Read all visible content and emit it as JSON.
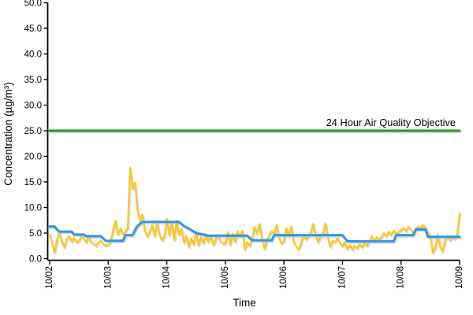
{
  "chart_data": {
    "type": "line",
    "title": "",
    "xlabel": "Time",
    "ylabel": "Concentration (µg/m³)",
    "ylim": [
      0,
      50
    ],
    "x_range_hours": [
      0,
      168
    ],
    "hours_per_day": 24,
    "grid": "off",
    "legend": "none",
    "y_tick_labels": [
      "0.0",
      "5.0",
      "10.0",
      "15.0",
      "20.0",
      "25.0",
      "30.0",
      "35.0",
      "40.0",
      "45.0",
      "50.0"
    ],
    "x_tick_labels": [
      "10/02",
      "10/03",
      "10/04",
      "10/05",
      "10/06",
      "10/07",
      "10/08",
      "10/09"
    ],
    "objective": {
      "label": "24 Hour Air Quality Objective",
      "value": 25,
      "color": "#1E9E1E"
    },
    "colors": {
      "axis": "#000000",
      "tick_text": "#000000",
      "shadow": "#bbbbbb",
      "hourly": "#FFC61A",
      "average": "#2D96EA"
    },
    "series": [
      {
        "name": "hourly-concentration",
        "color": "#FFC61A",
        "stroke_width": 2.2,
        "x_step_hours": 1,
        "values": [
          4.6,
          3.1,
          1.2,
          3.8,
          5.3,
          3.3,
          2.2,
          3.9,
          4.4,
          3.3,
          4.1,
          3.2,
          3.5,
          4.6,
          3.9,
          3.2,
          4.5,
          3.1,
          2.9,
          2.5,
          3.2,
          3.6,
          2.8,
          2.6,
          2.7,
          3.4,
          5.6,
          7.4,
          4.7,
          5.9,
          4.8,
          5.3,
          6.0,
          17.8,
          13.6,
          14.9,
          9.4,
          7.4,
          8.6,
          5.5,
          4.3,
          5.3,
          6.6,
          4.4,
          7.1,
          4.7,
          3.6,
          4.3,
          7.8,
          4.6,
          7.2,
          3.6,
          7.4,
          4.7,
          5.9,
          3.1,
          4.5,
          2.3,
          4.0,
          2.8,
          5.2,
          2.6,
          4.3,
          3.0,
          4.8,
          3.2,
          4.5,
          2.7,
          3.8,
          4.7,
          3.4,
          2.9,
          3.1,
          5.2,
          2.7,
          4.9,
          3.3,
          5.4,
          4.4,
          5.5,
          1.7,
          3.3,
          2.5,
          4.1,
          6.2,
          4.9,
          6.8,
          4.1,
          1.9,
          3.6,
          4.6,
          5.4,
          4.8,
          6.6,
          4.0,
          3.0,
          3.4,
          6.0,
          4.4,
          6.3,
          3.3,
          2.4,
          1.8,
          3.0,
          4.5,
          3.8,
          4.4,
          5.2,
          6.8,
          4.6,
          3.2,
          4.3,
          5.0,
          6.9,
          4.1,
          2.3,
          3.5,
          3.2,
          4.0,
          3.1,
          2.4,
          3.3,
          1.9,
          2.7,
          1.8,
          2.5,
          2.0,
          2.9,
          2.2,
          3.1,
          2.5,
          3.3,
          4.4,
          3.5,
          4.2,
          3.6,
          4.3,
          5.0,
          4.4,
          5.3,
          4.6,
          5.5,
          4.8,
          5.2,
          5.6,
          6.0,
          5.4,
          6.2,
          5.7,
          5.0,
          5.8,
          6.3,
          5.9,
          6.6,
          6.1,
          5.2,
          4.4,
          1.2,
          2.1,
          4.8,
          2.4,
          1.4,
          3.6,
          4.5,
          3.6,
          4.3,
          3.8,
          4.7,
          8.8
        ]
      },
      {
        "name": "24h-average-concentration",
        "color": "#2D96EA",
        "stroke_width": 3,
        "points": [
          [
            0,
            6.3
          ],
          [
            2,
            6.3
          ],
          [
            3,
            5.7
          ],
          [
            4,
            5.3
          ],
          [
            9,
            5.3
          ],
          [
            10,
            4.7
          ],
          [
            14,
            4.7
          ],
          [
            15,
            4.4
          ],
          [
            21,
            4.4
          ],
          [
            23,
            3.5
          ],
          [
            30,
            3.5
          ],
          [
            31,
            4.6
          ],
          [
            34,
            4.6
          ],
          [
            35,
            5.6
          ],
          [
            36,
            6.4
          ],
          [
            38,
            7.2
          ],
          [
            53,
            7.2
          ],
          [
            55,
            6.4
          ],
          [
            58,
            5.6
          ],
          [
            60,
            5.0
          ],
          [
            63,
            4.7
          ],
          [
            65,
            4.5
          ],
          [
            81,
            4.5
          ],
          [
            83,
            3.6
          ],
          [
            91,
            3.6
          ],
          [
            92,
            4.6
          ],
          [
            120,
            4.6
          ],
          [
            122,
            3.4
          ],
          [
            141,
            3.4
          ],
          [
            142,
            4.6
          ],
          [
            149,
            4.6
          ],
          [
            150,
            5.7
          ],
          [
            154,
            5.7
          ],
          [
            155,
            4.3
          ],
          [
            168,
            4.3
          ]
        ]
      }
    ]
  }
}
